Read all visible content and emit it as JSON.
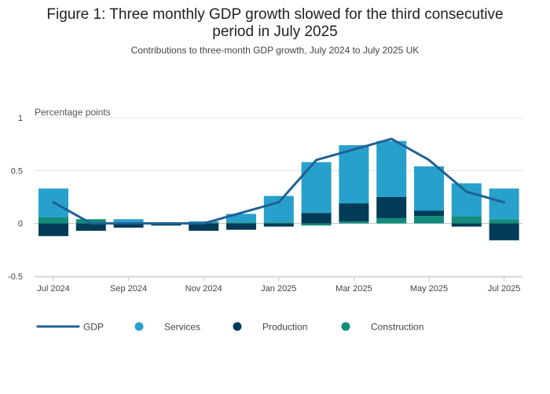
{
  "header": {
    "title_line1": "Figure 1: Three monthly GDP growth slowed for the third consecutive",
    "title_line2": "period in July 2025",
    "subtitle": "Contributions to three-month GDP growth, July 2024 to July 2025 UK"
  },
  "chart_data": {
    "type": "bar",
    "stacked": true,
    "title": "Figure 1: Three monthly GDP growth slowed for the third consecutive period in July 2025",
    "subtitle": "Contributions to three-month GDP growth, July 2024 to July 2025 UK",
    "ylabel": "Percentage points",
    "ylim": [
      -0.5,
      1
    ],
    "yticks": [
      1,
      0.5,
      0,
      -0.5
    ],
    "ytick_labels": [
      "1",
      "0.5",
      "0",
      "-0.5"
    ],
    "categories": [
      "Jul 2024",
      "Aug 2024",
      "Sep 2024",
      "Oct 2024",
      "Nov 2024",
      "Dec 2024",
      "Jan 2025",
      "Feb 2025",
      "Mar 2025",
      "Apr 2025",
      "May 2025",
      "Jun 2025",
      "Jul 2025"
    ],
    "xtick_labels": [
      "Jul 2024",
      "Sep 2024",
      "Nov 2024",
      "Jan 2025",
      "Mar 2025",
      "May 2025",
      "Jul 2025"
    ],
    "xtick_indices": [
      0,
      2,
      4,
      6,
      8,
      10,
      12
    ],
    "grid": true,
    "legend_position": "bottom",
    "series": [
      {
        "name": "Construction",
        "kind": "bar",
        "color": "#118c7b",
        "values": [
          0.06,
          0.04,
          0.01,
          0.0,
          0.01,
          0.01,
          0.01,
          -0.02,
          0.02,
          0.05,
          0.07,
          0.07,
          0.04
        ]
      },
      {
        "name": "Production",
        "kind": "bar",
        "color": "#003c57",
        "values": [
          -0.12,
          -0.07,
          -0.04,
          -0.02,
          -0.07,
          -0.06,
          -0.03,
          0.1,
          0.17,
          0.2,
          0.05,
          -0.03,
          -0.16
        ]
      },
      {
        "name": "Services",
        "kind": "bar",
        "color": "#27a0cc",
        "values": [
          0.27,
          0.0,
          0.03,
          0.01,
          0.01,
          0.08,
          0.25,
          0.48,
          0.55,
          0.53,
          0.42,
          0.31,
          0.29
        ]
      },
      {
        "name": "GDP",
        "kind": "line",
        "color": "#206095",
        "values": [
          0.2,
          0.0,
          0.0,
          0.0,
          0.0,
          0.1,
          0.2,
          0.6,
          0.7,
          0.8,
          0.6,
          0.3,
          0.2
        ]
      }
    ]
  },
  "legend": {
    "items": [
      {
        "label": "GDP",
        "color": "#206095",
        "shape": "line"
      },
      {
        "label": "Services",
        "color": "#27a0cc",
        "shape": "circle"
      },
      {
        "label": "Production",
        "color": "#003c57",
        "shape": "circle"
      },
      {
        "label": "Construction",
        "color": "#118c7b",
        "shape": "circle"
      }
    ]
  }
}
